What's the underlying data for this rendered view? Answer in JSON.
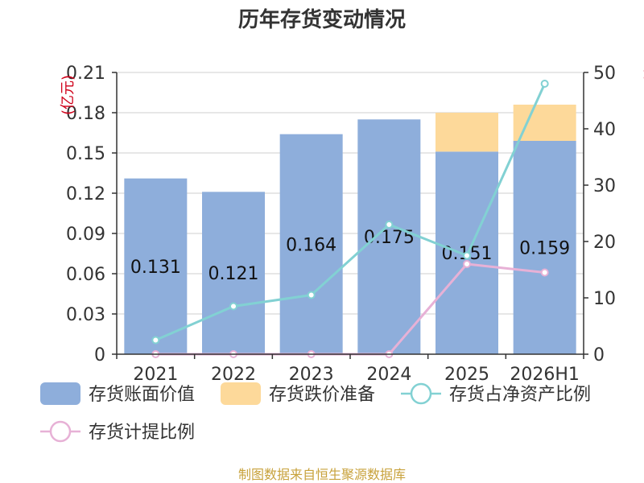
{
  "chart_data": {
    "type": "bar",
    "title": "历年存货变动情况",
    "categories": [
      "2021",
      "2022",
      "2023",
      "2024",
      "2025",
      "2026H1"
    ],
    "y_left_unit": "(亿元)",
    "y_right_unit": "%",
    "y_left_ticks": [
      "0",
      "0.03",
      "0.06",
      "0.09",
      "0.12",
      "0.15",
      "0.18",
      "0.21"
    ],
    "y_right_ticks": [
      "0",
      "10",
      "20",
      "30",
      "40",
      "50"
    ],
    "ylim_left": [
      0,
      0.21
    ],
    "ylim_right": [
      0,
      50
    ],
    "series": [
      {
        "name": "存货账面价值",
        "type": "bar",
        "axis": "left",
        "color": "#8eaedb",
        "values": [
          0.131,
          0.121,
          0.164,
          0.175,
          0.151,
          0.159
        ],
        "labels": [
          "0.131",
          "0.121",
          "0.164",
          "0.175",
          "0.151",
          "0.159"
        ]
      },
      {
        "name": "存货跌价准备",
        "type": "bar-stacked",
        "axis": "left",
        "color": "#fdd99a",
        "values": [
          0,
          0,
          0,
          0,
          0.029,
          0.027
        ]
      },
      {
        "name": "存货占净资产比例",
        "type": "line",
        "axis": "right",
        "color": "#82d1d3",
        "values": [
          2.5,
          8.5,
          10.5,
          23.0,
          17.5,
          48.0
        ]
      },
      {
        "name": "存货计提比例",
        "type": "line",
        "axis": "right",
        "color": "#e7b1d6",
        "values": [
          0,
          0,
          0,
          0,
          16.0,
          14.5
        ]
      }
    ],
    "grid": true,
    "legend_position": "bottom"
  },
  "source_text": "制图数据来自恒生聚源数据库"
}
